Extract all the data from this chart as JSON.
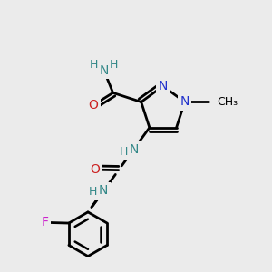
{
  "bg_color": "#ebebeb",
  "colors": {
    "C": "#000000",
    "N": "#2233cc",
    "NH": "#338888",
    "O": "#cc2222",
    "F": "#cc22cc",
    "H": "#338888",
    "bond": "#000000"
  },
  "lw": 2.0,
  "dbl_sep": 0.014,
  "fs": 10,
  "fs_small": 9,
  "figsize": [
    3.0,
    3.0
  ],
  "dpi": 100
}
